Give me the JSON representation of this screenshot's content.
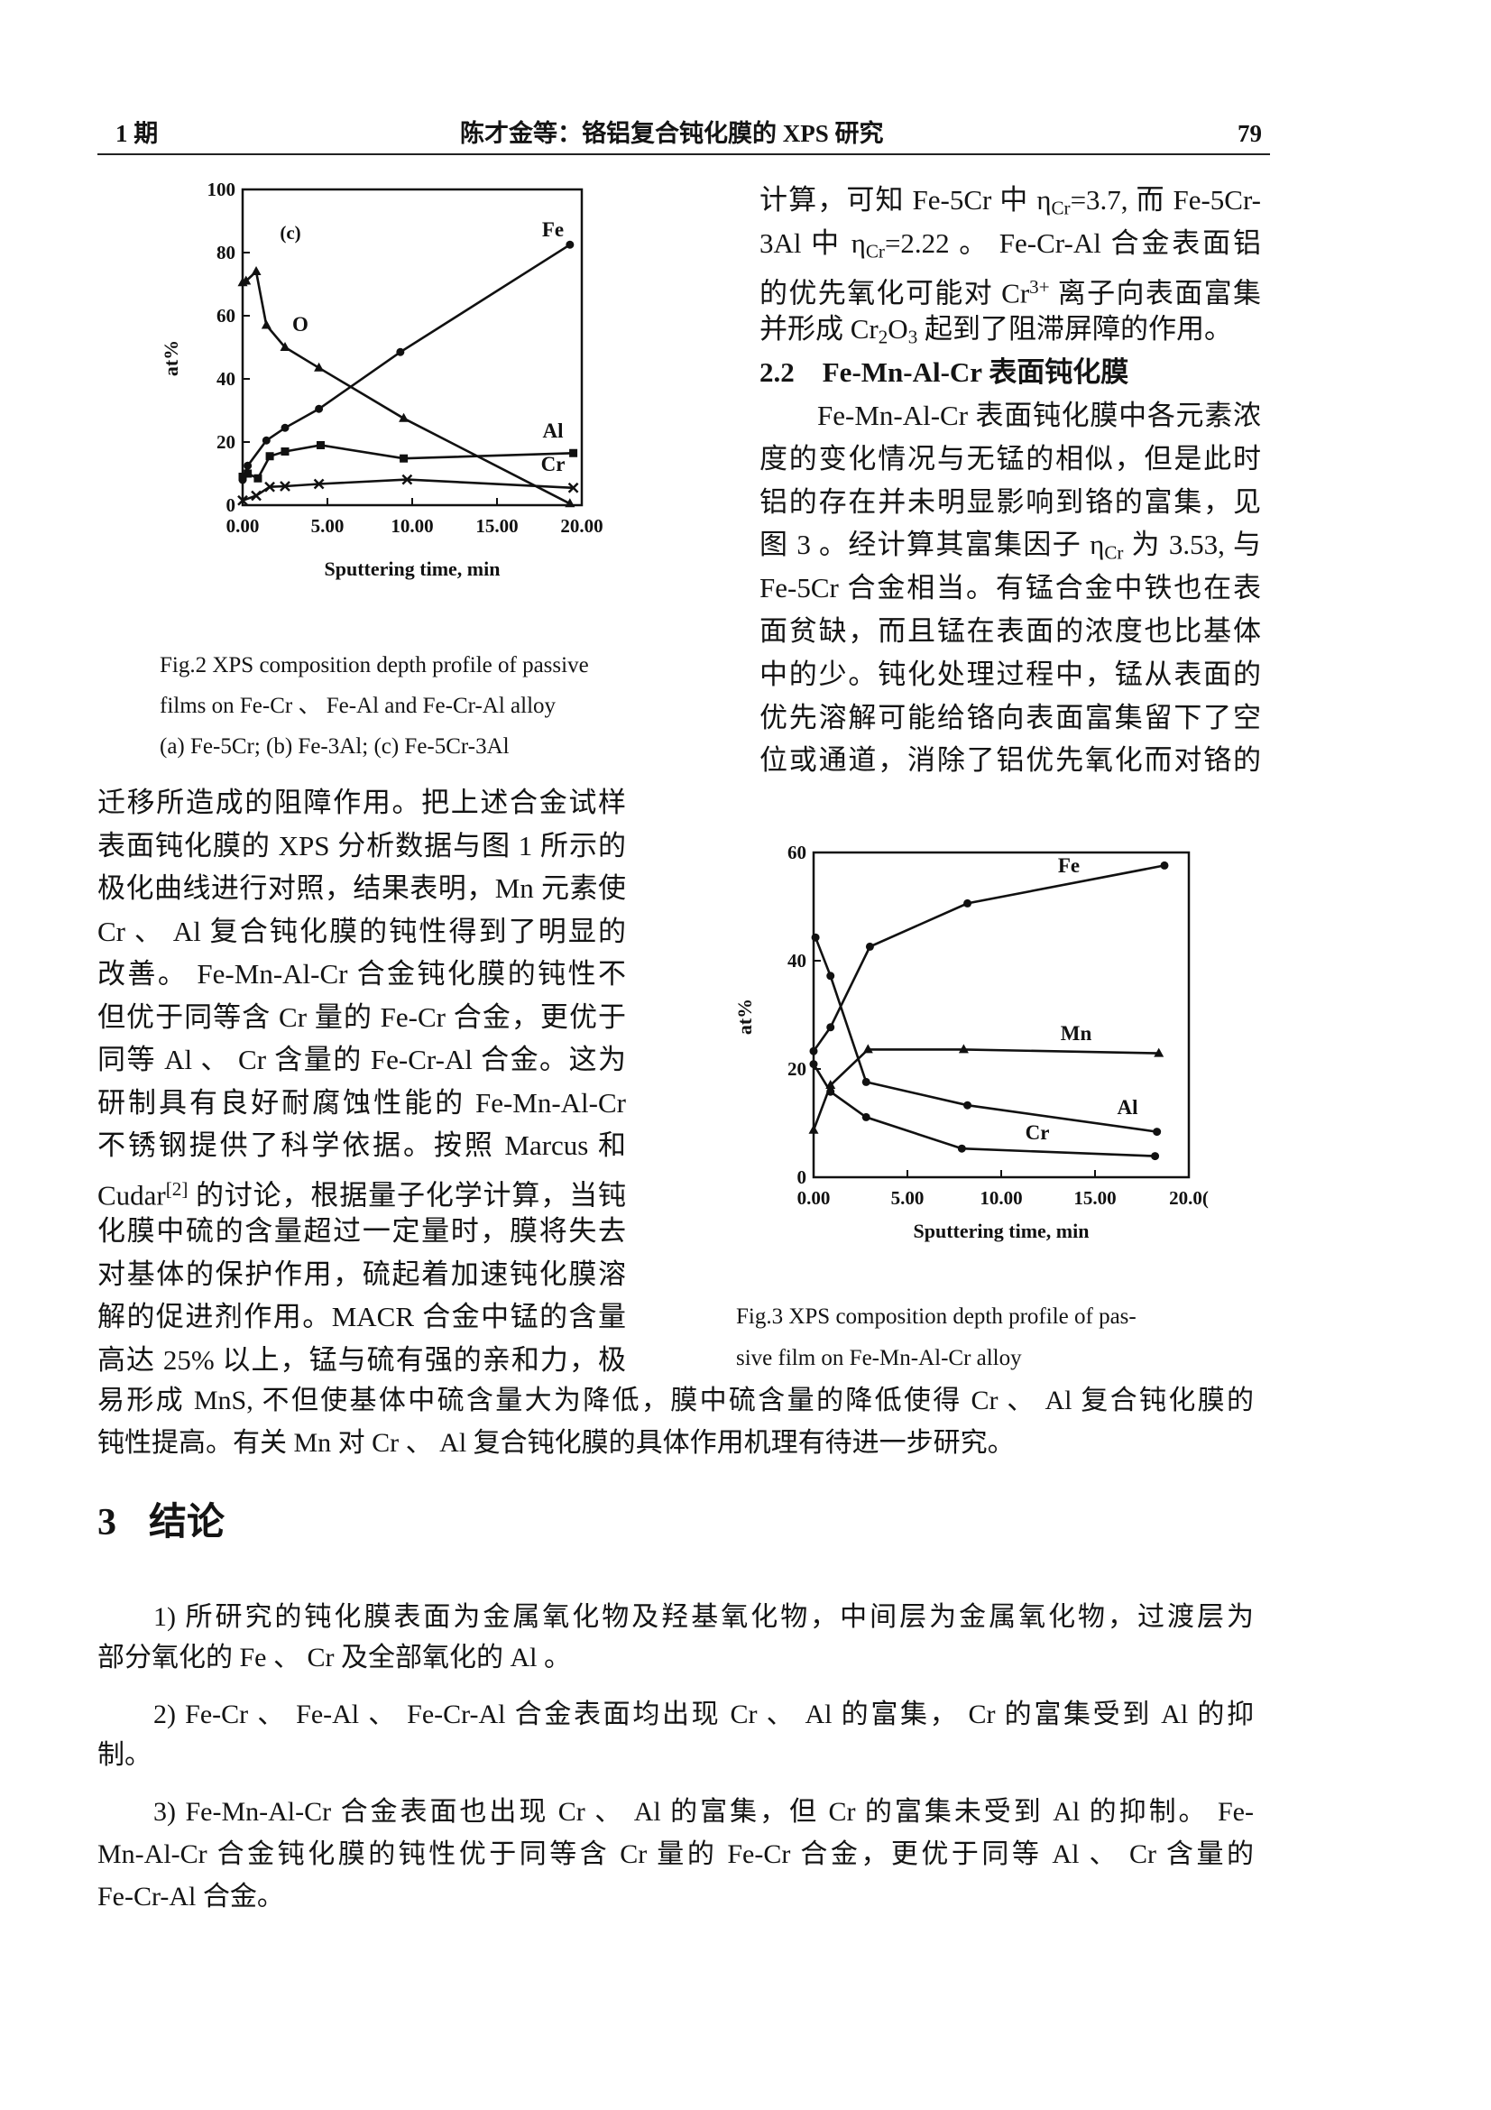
{
  "header": {
    "issue": "1 期",
    "running_title": "陈才金等：铬铝复合钝化膜的 XPS 研究",
    "page_number": "79"
  },
  "figure2": {
    "caption": [
      "Fig.2 XPS composition depth profile of passive",
      "films on Fe-Cr 、 Fe-Al and Fe-Cr-Al alloy",
      "(a) Fe-5Cr; (b) Fe-3Al; (c) Fe-5Cr-3Al"
    ]
  },
  "figure3": {
    "caption": [
      "Fig.3 XPS composition depth profile of pas-",
      "sive film on Fe-Mn-Al-Cr alloy"
    ]
  },
  "chart_data": [
    {
      "type": "line",
      "panel_label": "(c)",
      "xlabel": "Sputtering time, min",
      "ylabel": "at%",
      "xlim": [
        0,
        20
      ],
      "ylim": [
        0,
        100
      ],
      "xticks": [
        "0.00",
        "5.00",
        "10.00",
        "15.00",
        "20.00"
      ],
      "yticks": [
        "0",
        "20",
        "40",
        "60",
        "80",
        "100"
      ],
      "grid": false,
      "series": [
        {
          "name": "Fe",
          "marker": "circle",
          "points": [
            [
              0,
              8
            ],
            [
              0.3,
              12.5
            ],
            [
              1.4,
              20.5
            ],
            [
              2.5,
              24.5
            ],
            [
              4.5,
              30.5
            ],
            [
              9.3,
              48.5
            ],
            [
              19.3,
              82.5
            ]
          ]
        },
        {
          "name": "O",
          "marker": "triangle",
          "points": [
            [
              0,
              70.5
            ],
            [
              0.2,
              71
            ],
            [
              0.8,
              74
            ],
            [
              1.4,
              57
            ],
            [
              2.5,
              50
            ],
            [
              4.5,
              43.5
            ],
            [
              9.5,
              27.5
            ],
            [
              19.3,
              0.5
            ]
          ]
        },
        {
          "name": "Al",
          "marker": "square",
          "points": [
            [
              0,
              9
            ],
            [
              0.3,
              10
            ],
            [
              0.9,
              8.5
            ],
            [
              1.6,
              15.5
            ],
            [
              2.5,
              17
            ],
            [
              4.6,
              19
            ],
            [
              9.5,
              14.8
            ],
            [
              19.5,
              16.5
            ]
          ]
        },
        {
          "name": "Cr",
          "marker": "cross",
          "points": [
            [
              0,
              1.5
            ],
            [
              0.8,
              3
            ],
            [
              1.6,
              5.8
            ],
            [
              2.5,
              6
            ],
            [
              4.5,
              6.7
            ],
            [
              9.7,
              8.1
            ],
            [
              19.5,
              5.5
            ]
          ]
        }
      ]
    },
    {
      "type": "line",
      "xlabel": "Sputtering time, min",
      "ylabel": "at%",
      "xlim": [
        0,
        20
      ],
      "ylim": [
        0,
        60
      ],
      "xticks": [
        "0.00",
        "5.00",
        "10.00",
        "15.00",
        "20.0("
      ],
      "yticks": [
        "0",
        "20",
        "40",
        "60"
      ],
      "grid": false,
      "series": [
        {
          "name": "Fe",
          "marker": "circle",
          "points": [
            [
              0,
              23.3
            ],
            [
              0.9,
              27.7
            ],
            [
              3,
              42.6
            ],
            [
              8.2,
              50.6
            ],
            [
              18.7,
              57.6
            ]
          ]
        },
        {
          "name": "Mn",
          "marker": "triangle",
          "points": [
            [
              0,
              8.7
            ],
            [
              0.9,
              17
            ],
            [
              2.9,
              23.6
            ],
            [
              8,
              23.6
            ],
            [
              18.4,
              22.9
            ]
          ]
        },
        {
          "name": "Al",
          "marker": "circle",
          "points": [
            [
              0.1,
              44.3
            ],
            [
              0.9,
              37.2
            ],
            [
              2.8,
              17.6
            ],
            [
              8.2,
              13.3
            ],
            [
              18.3,
              8.4
            ]
          ]
        },
        {
          "name": "Cr",
          "marker": "circle",
          "points": [
            [
              0,
              20.9
            ],
            [
              0.9,
              15.8
            ],
            [
              2.8,
              11.1
            ],
            [
              7.9,
              5.3
            ],
            [
              18.2,
              3.9
            ]
          ]
        }
      ]
    }
  ],
  "body": {
    "left_column": [
      "迁移所造成的阻障作用。把上述合金试样",
      "表面钝化膜的 XPS 分析数据与图 1 所示的",
      "极化曲线进行对照，结果表明，Mn 元素使",
      "Cr 、 Al 复合钝化膜的钝性得到了明显的",
      "改善。 Fe-Mn-Al-Cr 合金钝化膜的钝性不",
      "但优于同等含 Cr 量的 Fe-Cr 合金，更优于",
      "同等 Al 、 Cr 含量的 Fe-Cr-Al 合金。这为",
      "研制具有良好耐腐蚀性能的 Fe-Mn-Al-Cr",
      "不锈钢提供了科学依据。按照 Marcus 和",
      [
        "Cudar",
        {
          "sup": "[2]"
        },
        " 的讨论，根据量子化学计算，当钝"
      ],
      "化膜中硫的含量超过一定量时，膜将失去",
      "对基体的保护作用，硫起着加速钝化膜溶",
      "解的促进剂作用。MACR 合金中锰的含量",
      "高达 25% 以上，锰与硫有强的亲和力，极"
    ],
    "full_width": [
      "易形成 MnS, 不但使基体中硫含量大为降低，膜中硫含量的降低使得 Cr 、 Al 复合钝化膜的",
      "钝性提高。有关 Mn 对 Cr 、 Al 复合钝化膜的具体作用机理有待进一步研究。"
    ],
    "right_column": [
      [
        "计算，可知 Fe-5Cr 中 η",
        {
          "sub": "Cr"
        },
        "=3.7, 而 Fe-5Cr-"
      ],
      [
        "3Al 中 η",
        {
          "sub": "Cr"
        },
        "=2.22 。 Fe-Cr-Al 合金表面铝"
      ],
      [
        "的优先氧化可能对 Cr",
        {
          "sup": "3+"
        },
        " 离子向表面富集"
      ],
      [
        "并形成 Cr",
        {
          "sub": "2"
        },
        "O",
        {
          "sub": "3"
        },
        " 起到了阻滞屏障的作用。"
      ],
      "2.2　Fe-Mn-Al-Cr 表面钝化膜",
      "Fe-Mn-Al-Cr 表面钝化膜中各元素浓",
      "度的变化情况与无锰的相似，但是此时",
      "铝的存在并未明显影响到铬的富集，见",
      [
        "图 3 。经计算其富集因子 η",
        {
          "sub": "Cr"
        },
        " 为 3.53, 与"
      ],
      "Fe-5Cr 合金相当。有锰合金中铁也在表",
      "面贫缺，而且锰在表面的浓度也比基体",
      "中的少。钝化处理过程中，锰从表面的",
      "优先溶解可能给铬向表面富集留下了空",
      "位或通道，消除了铝优先氧化而对铬的"
    ],
    "section3": {
      "number": "3",
      "title": "结论",
      "items": [
        [
          "1) 所研究的钝化膜表面为金属氧化物及羟基氧化物，中间层为金属氧化物，过渡层为",
          "部分氧化的 Fe 、 Cr 及全部氧化的 Al 。"
        ],
        [
          "2) Fe-Cr 、 Fe-Al 、 Fe-Cr-Al 合金表面均出现 Cr 、 Al 的富集， Cr 的富集受到 Al 的抑",
          "制。"
        ],
        [
          "3) Fe-Mn-Al-Cr 合金表面也出现 Cr 、 Al 的富集，但 Cr 的富集未受到 Al 的抑制。 Fe-",
          "Mn-Al-Cr 合金钝化膜的钝性优于同等含 Cr 量的 Fe-Cr 合金，更优于同等 Al 、 Cr 含量的",
          "Fe-Cr-Al 合金。"
        ]
      ]
    }
  }
}
